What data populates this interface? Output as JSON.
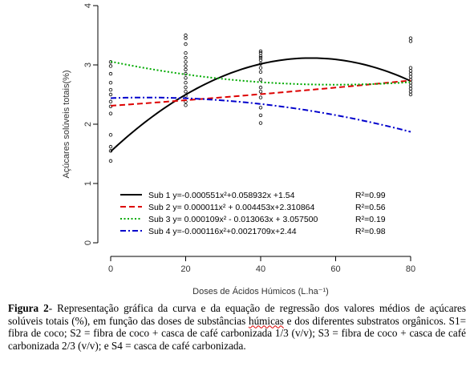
{
  "chart_data": {
    "type": "scatter",
    "xlabel": "Doses de Ácidos Húmicos (L.ha⁻¹)",
    "ylabel": "Açúcares solúveis totais(%)",
    "xlim": [
      0,
      80
    ],
    "ylim": [
      0,
      4
    ],
    "xticks": [
      0,
      20,
      40,
      60,
      80
    ],
    "yticks": [
      0,
      1,
      2,
      3,
      4
    ],
    "grid": false,
    "legend_position": "inside-bottom",
    "points": [
      {
        "x": 0,
        "y": 1.38
      },
      {
        "x": 0,
        "y": 1.55
      },
      {
        "x": 0,
        "y": 1.62
      },
      {
        "x": 0,
        "y": 1.82
      },
      {
        "x": 0,
        "y": 2.18
      },
      {
        "x": 0,
        "y": 2.3
      },
      {
        "x": 0,
        "y": 2.38
      },
      {
        "x": 0,
        "y": 2.5
      },
      {
        "x": 0,
        "y": 2.58
      },
      {
        "x": 0,
        "y": 2.7
      },
      {
        "x": 0,
        "y": 2.85
      },
      {
        "x": 0,
        "y": 2.98
      },
      {
        "x": 0,
        "y": 3.05
      },
      {
        "x": 20,
        "y": 2.32
      },
      {
        "x": 20,
        "y": 2.38
      },
      {
        "x": 20,
        "y": 2.48
      },
      {
        "x": 20,
        "y": 2.55
      },
      {
        "x": 20,
        "y": 2.62
      },
      {
        "x": 20,
        "y": 2.7
      },
      {
        "x": 20,
        "y": 2.78
      },
      {
        "x": 20,
        "y": 2.85
      },
      {
        "x": 20,
        "y": 2.92
      },
      {
        "x": 20,
        "y": 2.98
      },
      {
        "x": 20,
        "y": 3.05
      },
      {
        "x": 20,
        "y": 3.12
      },
      {
        "x": 20,
        "y": 3.2
      },
      {
        "x": 20,
        "y": 3.35
      },
      {
        "x": 20,
        "y": 3.45
      },
      {
        "x": 20,
        "y": 3.5
      },
      {
        "x": 40,
        "y": 2.02
      },
      {
        "x": 40,
        "y": 2.15
      },
      {
        "x": 40,
        "y": 2.28
      },
      {
        "x": 40,
        "y": 2.45
      },
      {
        "x": 40,
        "y": 2.55
      },
      {
        "x": 40,
        "y": 2.62
      },
      {
        "x": 40,
        "y": 2.75
      },
      {
        "x": 40,
        "y": 2.88
      },
      {
        "x": 40,
        "y": 2.95
      },
      {
        "x": 40,
        "y": 3.02
      },
      {
        "x": 40,
        "y": 3.08
      },
      {
        "x": 40,
        "y": 3.12
      },
      {
        "x": 40,
        "y": 3.15
      },
      {
        "x": 40,
        "y": 3.2
      },
      {
        "x": 40,
        "y": 3.23
      },
      {
        "x": 80,
        "y": 2.5
      },
      {
        "x": 80,
        "y": 2.55
      },
      {
        "x": 80,
        "y": 2.6
      },
      {
        "x": 80,
        "y": 2.65
      },
      {
        "x": 80,
        "y": 2.7
      },
      {
        "x": 80,
        "y": 2.75
      },
      {
        "x": 80,
        "y": 2.8
      },
      {
        "x": 80,
        "y": 2.85
      },
      {
        "x": 80,
        "y": 2.9
      },
      {
        "x": 80,
        "y": 2.95
      },
      {
        "x": 80,
        "y": 3.4
      },
      {
        "x": 80,
        "y": 3.45
      }
    ],
    "series": [
      {
        "name": "Sub 1",
        "equation": "y=-0.000551x²+0.058932x +1.54",
        "r2": "R²=0.99",
        "coefficients": {
          "a": -0.000551,
          "b": 0.058932,
          "c": 1.54
        },
        "color": "#000000",
        "dash": "solid"
      },
      {
        "name": "Sub 2",
        "equation": "y= 0.000011x² + 0.004453x+2.310864",
        "r2": "R²=0.56",
        "coefficients": {
          "a": 1.1e-05,
          "b": 0.004453,
          "c": 2.310864
        },
        "color": "#dd0000",
        "dash": "dashed"
      },
      {
        "name": "Sub 3",
        "equation": "y= 0.000109x² - 0.013063x + 3.057500",
        "r2": "R²=0.19",
        "coefficients": {
          "a": 0.000109,
          "b": -0.013063,
          "c": 3.0575
        },
        "color": "#00aa00",
        "dash": "dotted"
      },
      {
        "name": "Sub 4",
        "equation": "y=-0.000116x²+0.0021709x+2.44",
        "r2": "R²=0.98",
        "coefficients": {
          "a": -0.000116,
          "b": 0.0021709,
          "c": 2.44
        },
        "color": "#0000cc",
        "dash": "dashdot"
      }
    ]
  },
  "caption": {
    "label": "Figura 2",
    "text_before": "- Representação gráfica da curva e da equação de regressão dos valores médios de açúcares solúveis totais (%), em função das doses de substâncias ",
    "text_wavy": "húmicas",
    "text_after": " e dos diferentes substratos orgânicos. S1= fibra de coco; S2 = fibra de coco + casca de café carbonizada 1/3 (v/v); S3 = fibra de coco + casca de café carbonizada 2/3 (v/v); e S4 = casca de café carbonizada."
  }
}
